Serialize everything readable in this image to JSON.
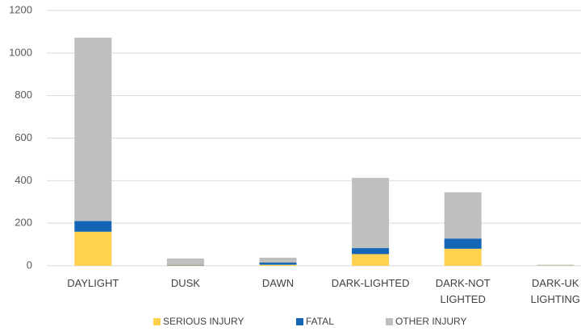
{
  "chart_data": {
    "type": "stacked_bar",
    "categories": [
      "DAYLIGHT",
      "DUSK",
      "DAWN",
      "DARK-LIGHTED",
      "DARK-NOT LIGHTED",
      "DARK-UK LIGHTING"
    ],
    "series": [
      {
        "name": "SERIOUS INJURY",
        "color": "#ffd14f",
        "values": [
          160,
          2,
          5,
          55,
          80,
          1
        ]
      },
      {
        "name": "FATAL",
        "color": "#1565b6",
        "values": [
          50,
          2,
          10,
          28,
          48,
          0
        ]
      },
      {
        "name": "OTHER INJURY",
        "color": "#bfbfbf",
        "values": [
          862,
          30,
          23,
          330,
          217,
          4
        ]
      }
    ],
    "ylim": [
      0,
      1200
    ],
    "yticks": [
      0,
      200,
      400,
      600,
      800,
      1000,
      1200
    ],
    "grid": true,
    "legend": "bottom"
  }
}
